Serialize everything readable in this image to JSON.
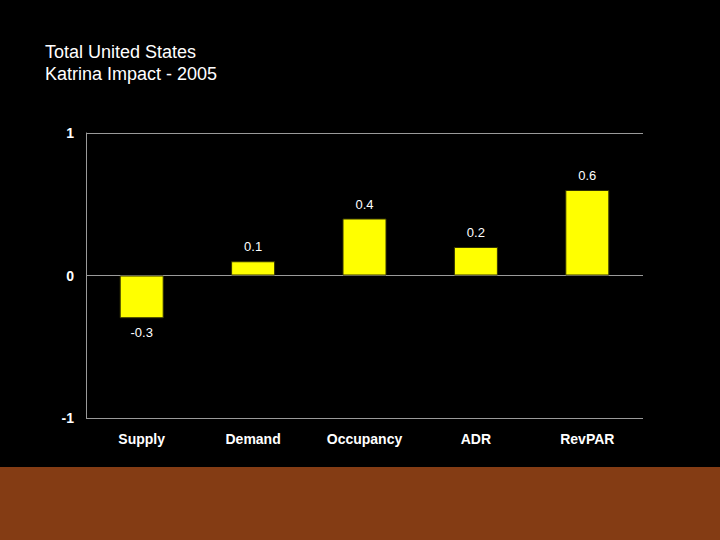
{
  "chart_data": {
    "type": "bar",
    "title": "Total United States",
    "subtitle": "Katrina Impact - 2005",
    "categories": [
      "Supply",
      "Demand",
      "Occupancy",
      "ADR",
      "RevPAR"
    ],
    "values": [
      -0.3,
      0.1,
      0.4,
      0.2,
      0.6
    ],
    "color": "#FFFF00",
    "ylim": [
      -1,
      1
    ],
    "yticks": [
      -1,
      0,
      1
    ],
    "grid": true,
    "data_labels": true
  }
}
